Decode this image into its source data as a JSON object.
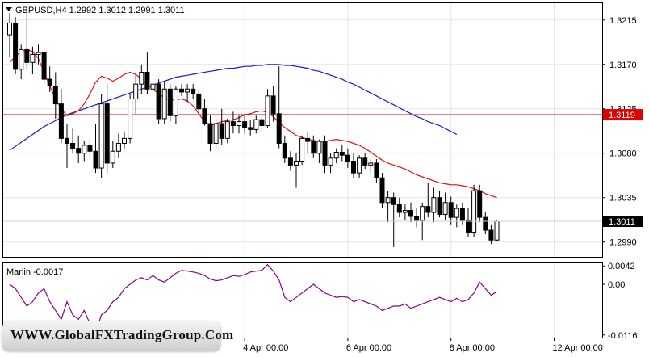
{
  "chart_data": {
    "type": "candlestick",
    "symbol_header": "GBPUSD,H4  1.2992 1.3012 1.2991 1.3011",
    "price_axis": {
      "ticks": [
        1.3215,
        1.317,
        1.3125,
        1.308,
        1.3035,
        1.299
      ],
      "range": [
        1.2975,
        1.3232
      ]
    },
    "horizontal_line": {
      "value": 1.3119,
      "label": "1.3119",
      "color": "#e00000"
    },
    "current_price": {
      "value": 1.3011,
      "label": "1.3011"
    },
    "time_labels": [
      {
        "label": "4 Apr 00:00",
        "index": 41
      },
      {
        "label": "6 Apr 00:00",
        "index": 59
      },
      {
        "label": "8 Apr 00:00",
        "index": 77
      },
      {
        "label": "12 Apr 00:00",
        "index": 95
      }
    ],
    "candles": [
      [
        1.32,
        1.3222,
        1.3178,
        1.3212
      ],
      [
        1.3212,
        1.3218,
        1.316,
        1.3165
      ],
      [
        1.3165,
        1.319,
        1.3155,
        1.3185
      ],
      [
        1.3185,
        1.3225,
        1.3165,
        1.3172
      ],
      [
        1.3172,
        1.3188,
        1.316,
        1.318
      ],
      [
        1.318,
        1.319,
        1.317,
        1.3182
      ],
      [
        1.3182,
        1.3186,
        1.315,
        1.3155
      ],
      [
        1.3155,
        1.3168,
        1.3142,
        1.3148
      ],
      [
        1.3148,
        1.3162,
        1.3115,
        1.313
      ],
      [
        1.313,
        1.3145,
        1.309,
        1.3095
      ],
      [
        1.3095,
        1.311,
        1.3065,
        1.309
      ],
      [
        1.309,
        1.3105,
        1.308,
        1.3085
      ],
      [
        1.3085,
        1.3098,
        1.307,
        1.308
      ],
      [
        1.308,
        1.3092,
        1.3072,
        1.3088
      ],
      [
        1.3088,
        1.3095,
        1.3075,
        1.3082
      ],
      [
        1.3082,
        1.311,
        1.306,
        1.3065
      ],
      [
        1.3065,
        1.314,
        1.3055,
        1.313
      ],
      [
        1.313,
        1.315,
        1.306,
        1.307
      ],
      [
        1.307,
        1.3092,
        1.3065,
        1.3082
      ],
      [
        1.3082,
        1.31,
        1.3075,
        1.309
      ],
      [
        1.309,
        1.3102,
        1.3085,
        1.3095
      ],
      [
        1.3095,
        1.314,
        1.309,
        1.3135
      ],
      [
        1.3135,
        1.316,
        1.312,
        1.315
      ],
      [
        1.315,
        1.317,
        1.314,
        1.3162
      ],
      [
        1.3162,
        1.3182,
        1.314,
        1.3145
      ],
      [
        1.3145,
        1.3158,
        1.313,
        1.315
      ],
      [
        1.315,
        1.3155,
        1.311,
        1.3115
      ],
      [
        1.3115,
        1.3152,
        1.311,
        1.3145
      ],
      [
        1.3145,
        1.315,
        1.3112,
        1.3118
      ],
      [
        1.3118,
        1.3148,
        1.311,
        1.3145
      ],
      [
        1.3145,
        1.315,
        1.3138,
        1.3142
      ],
      [
        1.3142,
        1.315,
        1.3132,
        1.3145
      ],
      [
        1.3145,
        1.315,
        1.3135,
        1.314
      ],
      [
        1.314,
        1.3145,
        1.312,
        1.3125
      ],
      [
        1.3125,
        1.3135,
        1.3108,
        1.311
      ],
      [
        1.311,
        1.3118,
        1.3082,
        1.309
      ],
      [
        1.309,
        1.3115,
        1.3085,
        1.311
      ],
      [
        1.311,
        1.3125,
        1.3088,
        1.3095
      ],
      [
        1.3095,
        1.3115,
        1.309,
        1.3112
      ],
      [
        1.3112,
        1.3122,
        1.31,
        1.3108
      ],
      [
        1.3108,
        1.3118,
        1.31,
        1.3112
      ],
      [
        1.3112,
        1.312,
        1.31,
        1.3106
      ],
      [
        1.3106,
        1.3114,
        1.3098,
        1.3104
      ],
      [
        1.3104,
        1.3118,
        1.31,
        1.3114
      ],
      [
        1.3114,
        1.312,
        1.3102,
        1.3108
      ],
      [
        1.3108,
        1.3145,
        1.3105,
        1.3138
      ],
      [
        1.3138,
        1.3148,
        1.3112,
        1.312
      ],
      [
        1.312,
        1.3168,
        1.3085,
        1.309
      ],
      [
        1.309,
        1.3098,
        1.307,
        1.3075
      ],
      [
        1.3075,
        1.3082,
        1.3062,
        1.3068
      ],
      [
        1.3068,
        1.308,
        1.3045,
        1.3072
      ],
      [
        1.3072,
        1.3098,
        1.3068,
        1.3095
      ],
      [
        1.3095,
        1.3102,
        1.308,
        1.3092
      ],
      [
        1.3092,
        1.3098,
        1.3075,
        1.308
      ],
      [
        1.308,
        1.3094,
        1.307,
        1.3092
      ],
      [
        1.3092,
        1.3098,
        1.306,
        1.3068
      ],
      [
        1.3068,
        1.308,
        1.306,
        1.3075
      ],
      [
        1.3075,
        1.3085,
        1.307,
        1.3081
      ],
      [
        1.3081,
        1.3088,
        1.3072,
        1.3078
      ],
      [
        1.3078,
        1.3085,
        1.3065,
        1.3072
      ],
      [
        1.3072,
        1.308,
        1.3055,
        1.306
      ],
      [
        1.306,
        1.3078,
        1.3055,
        1.3075
      ],
      [
        1.3075,
        1.308,
        1.3064,
        1.3068
      ],
      [
        1.3068,
        1.3074,
        1.306,
        1.307
      ],
      [
        1.307,
        1.3074,
        1.305,
        1.3055
      ],
      [
        1.3055,
        1.306,
        1.3025,
        1.303
      ],
      [
        1.303,
        1.3042,
        1.301,
        1.3035
      ],
      [
        1.3035,
        1.304,
        1.2985,
        1.3028
      ],
      [
        1.3028,
        1.3035,
        1.3015,
        1.302
      ],
      [
        1.302,
        1.3028,
        1.3012,
        1.3022
      ],
      [
        1.3022,
        1.303,
        1.301,
        1.3016
      ],
      [
        1.3016,
        1.3024,
        1.3005,
        1.3012
      ],
      [
        1.3012,
        1.303,
        1.2992,
        1.3026
      ],
      [
        1.3026,
        1.305,
        1.3015,
        1.302
      ],
      [
        1.302,
        1.3045,
        1.301,
        1.3035
      ],
      [
        1.3035,
        1.3042,
        1.3015,
        1.3018
      ],
      [
        1.3018,
        1.304,
        1.3012,
        1.303
      ],
      [
        1.303,
        1.3036,
        1.3008,
        1.3015
      ],
      [
        1.3015,
        1.3028,
        1.3005,
        1.3024
      ],
      [
        1.3024,
        1.303,
        1.3008,
        1.3012
      ],
      [
        1.3012,
        1.3025,
        1.2995,
        1.3
      ],
      [
        1.3,
        1.3048,
        1.2995,
        1.3042
      ],
      [
        1.3042,
        1.3048,
        1.301,
        1.3015
      ],
      [
        1.3015,
        1.302,
        1.2998,
        1.3002
      ],
      [
        1.3002,
        1.3008,
        1.2988,
        1.2992
      ],
      [
        1.2992,
        1.3012,
        1.2991,
        1.3011
      ]
    ],
    "ma_red": [
      1.3172,
      1.3178,
      1.3183,
      1.3185,
      1.3183,
      1.3176,
      1.3162,
      1.3148,
      1.3135,
      1.3125,
      1.3118,
      1.312,
      1.3123,
      1.313,
      1.314,
      1.3152,
      1.3158,
      1.3156,
      1.3153,
      1.3156,
      1.316,
      1.3162,
      1.316,
      1.3155,
      1.315,
      1.3145,
      1.314,
      1.3136,
      1.3134,
      1.3134,
      1.3135,
      1.3133,
      1.3128,
      1.312,
      1.3112,
      1.3108,
      1.311,
      1.3112,
      1.3113,
      1.3114,
      1.3116,
      1.3119,
      1.312,
      1.3122,
      1.3123,
      1.3121,
      1.3117,
      1.3111,
      1.3106,
      1.3102,
      1.3098,
      1.3096,
      1.3094,
      1.3093,
      1.3092,
      1.3092,
      1.3093,
      1.3094,
      1.3093,
      1.3092,
      1.309,
      1.3088,
      1.3085,
      1.3081,
      1.3077,
      1.3073,
      1.307,
      1.3068,
      1.3066,
      1.3064,
      1.3061,
      1.3058,
      1.3056,
      1.3054,
      1.3052,
      1.305,
      1.3049,
      1.3048,
      1.3048,
      1.3047,
      1.3046,
      1.3044,
      1.3042,
      1.3039,
      1.3037,
      1.3035
    ],
    "ma_blue": [
      1.3083,
      1.3087,
      1.3091,
      1.3095,
      1.3099,
      1.3103,
      1.3107,
      1.311,
      1.3113,
      1.3116,
      1.3119,
      1.3121,
      1.3123,
      1.3125,
      1.3127,
      1.3129,
      1.3131,
      1.3133,
      1.3135,
      1.3137,
      1.3139,
      1.3141,
      1.3143,
      1.3145,
      1.3147,
      1.3149,
      1.3151,
      1.3153,
      1.3155,
      1.3157,
      1.3158,
      1.3159,
      1.316,
      1.3161,
      1.3162,
      1.3163,
      1.3164,
      1.3165,
      1.3166,
      1.3166,
      1.3167,
      1.3168,
      1.3168,
      1.3169,
      1.3169,
      1.317,
      1.317,
      1.317,
      1.3169,
      1.3169,
      1.3168,
      1.3167,
      1.3166,
      1.3164,
      1.3163,
      1.3161,
      1.3159,
      1.3157,
      1.3155,
      1.3152,
      1.315,
      1.3147,
      1.3144,
      1.3141,
      1.3138,
      1.3135,
      1.3132,
      1.3129,
      1.3126,
      1.3123,
      1.312,
      1.3117,
      1.3115,
      1.3112,
      1.311,
      1.3108,
      1.3105,
      1.3102,
      1.3099
    ],
    "indicator": {
      "name": "Marlin -0.0017",
      "ticks": [
        {
          "value": 0.0042,
          "label": "0.0042"
        },
        {
          "value": 0.0,
          "label": "0.00"
        },
        {
          "value": -0.0116,
          "label": "-0.0116"
        }
      ],
      "range": [
        -0.0122,
        0.0048
      ],
      "values": [
        0.0,
        -0.001,
        -0.003,
        -0.005,
        -0.004,
        -0.002,
        -0.001,
        -0.004,
        -0.006,
        -0.008,
        -0.004,
        -0.007,
        -0.008,
        -0.006,
        -0.009,
        -0.011,
        -0.007,
        -0.006,
        -0.004,
        -0.003,
        -0.001,
        0.0,
        0.001,
        0.0015,
        0.001,
        0.002,
        0.001,
        0.0005,
        0.0015,
        0.0025,
        0.0032,
        0.003,
        0.0028,
        0.0025,
        0.002,
        0.0012,
        0.0008,
        0.001,
        0.0015,
        0.002,
        0.0018,
        0.0022,
        0.0028,
        0.003,
        0.0032,
        0.0045,
        0.003,
        0.001,
        -0.003,
        -0.004,
        -0.003,
        -0.002,
        -0.001,
        0.0,
        -0.001,
        -0.002,
        -0.0025,
        -0.003,
        -0.0028,
        -0.003,
        -0.004,
        -0.0035,
        -0.004,
        -0.0045,
        -0.005,
        -0.006,
        -0.0055,
        -0.005,
        -0.005,
        -0.0045,
        -0.0055,
        -0.005,
        -0.0045,
        -0.004,
        -0.0035,
        -0.003,
        -0.0035,
        -0.004,
        -0.0032,
        -0.004,
        -0.0035,
        -0.002,
        0.0005,
        -0.001,
        -0.0025,
        -0.0017
      ]
    }
  },
  "watermark": {
    "text": "WWW.GlobalFXTradingGroup.Com"
  }
}
